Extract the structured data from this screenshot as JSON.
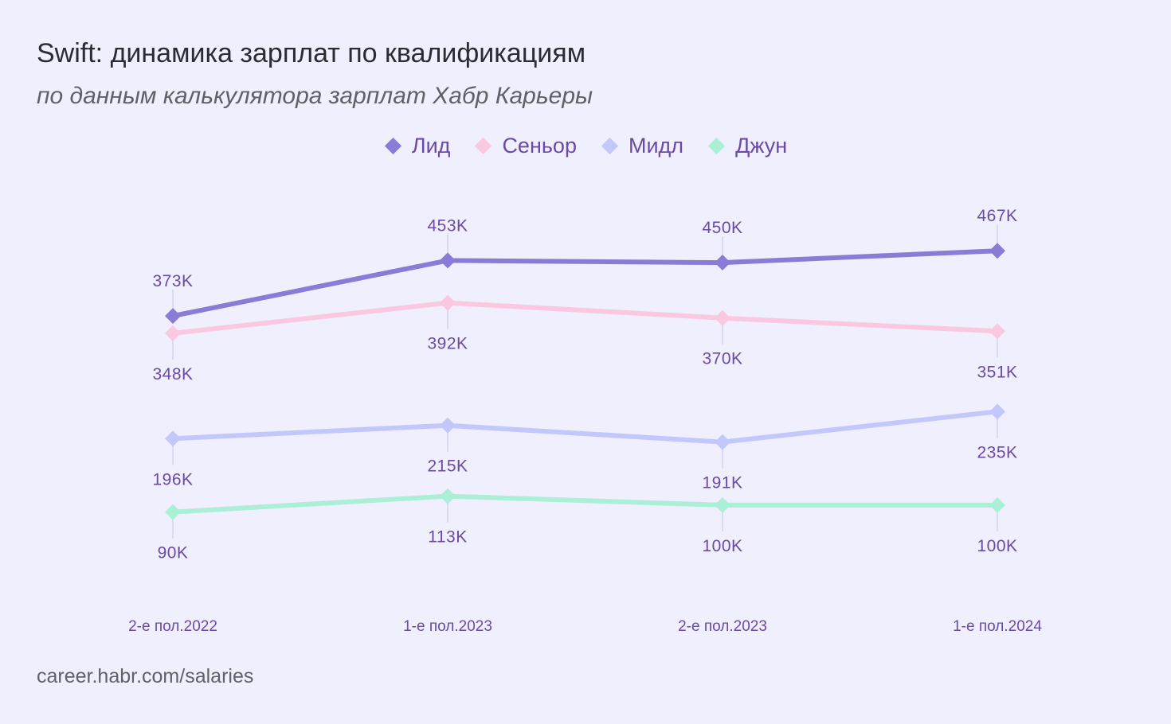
{
  "title": "Swift: динамика зарплат по квалификациям",
  "subtitle": "по данным калькулятора зарплат Хабр Карьеры",
  "source": "career.habr.com/salaries",
  "chart_data": {
    "type": "line",
    "categories": [
      "2-е пол.2022",
      "1-е пол.2023",
      "2-е пол.2023",
      "1-е пол.2024"
    ],
    "unit_suffix": "K",
    "series": [
      {
        "name": "Лид",
        "color": "#8a7bd6",
        "values": [
          373,
          453,
          450,
          467
        ],
        "label_position": "above"
      },
      {
        "name": "Сеньор",
        "color": "#fbc8e1",
        "values": [
          348,
          392,
          370,
          351
        ],
        "label_position": "below"
      },
      {
        "name": "Мидл",
        "color": "#c2c8fb",
        "values": [
          196,
          215,
          191,
          235
        ],
        "label_position": "below"
      },
      {
        "name": "Джун",
        "color": "#abefd6",
        "values": [
          90,
          113,
          100,
          100
        ],
        "label_position": "below"
      }
    ],
    "label_color": "#6a4aa8",
    "tick_color": "#6a4aa8",
    "ylim": [
      0,
      500
    ],
    "grid": false,
    "legend_position": "top-center"
  }
}
